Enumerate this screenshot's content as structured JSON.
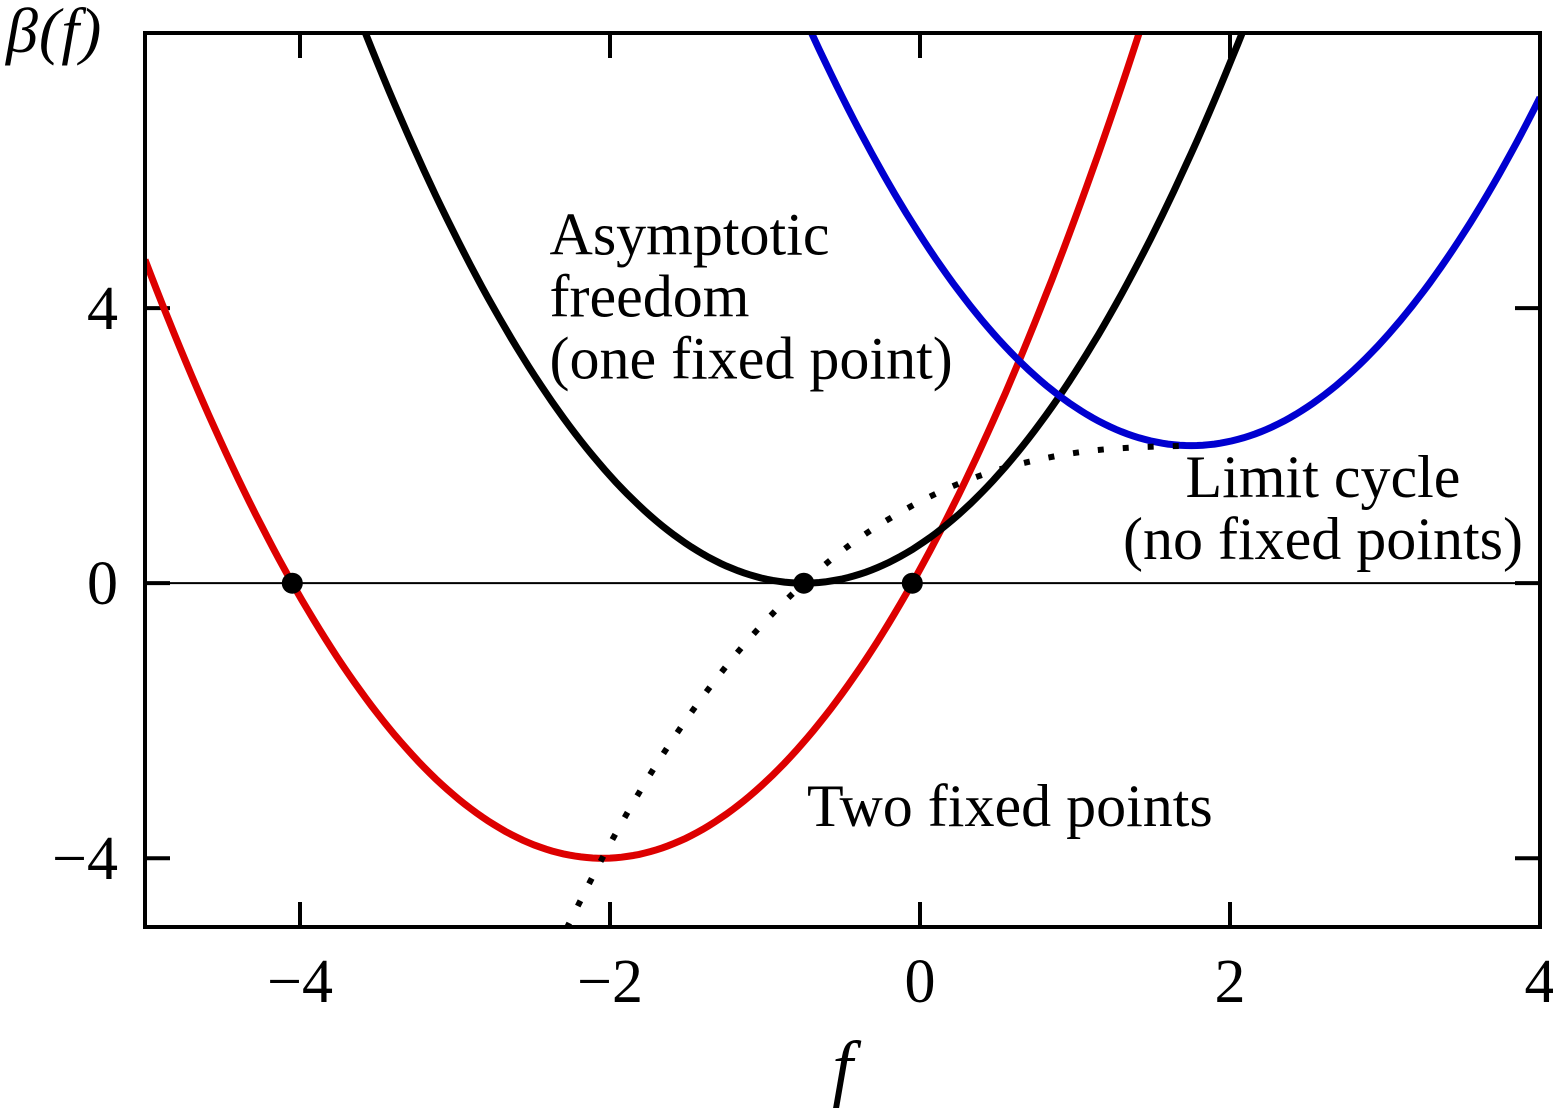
{
  "chart_data": {
    "type": "line",
    "xlabel": "f",
    "ylabel": "β(f)",
    "xlim": [
      -5,
      4
    ],
    "ylim": [
      -5,
      8
    ],
    "xticks": {
      "values": [
        -4,
        -2,
        0,
        2,
        4
      ],
      "labels": [
        "−4",
        "−2",
        "0",
        "2",
        "4"
      ]
    },
    "yticks": {
      "values": [
        -4,
        0,
        4
      ],
      "labels": [
        "−4",
        "0",
        "4"
      ]
    },
    "grid": false,
    "zero_line_y": 0,
    "axis_color": "#000000",
    "background": "#ffffff",
    "series": [
      {
        "name": "two-fixed-points-parabola",
        "label": "Two fixed points",
        "type": "parabola",
        "params": {
          "a": 1,
          "h": -2.05,
          "k": -4
        },
        "color": "#dd0000",
        "dash": "solid",
        "stroke_width": 7,
        "description": "beta(f) = (f + 2.05)^2 - 4; crosses zero at f = -4.05 and f = -0.05; minimum at (-2.05, -4)"
      },
      {
        "name": "asymptotic-freedom-parabola",
        "label": "Asymptotic freedom (one fixed point)",
        "type": "parabola",
        "params": {
          "a": 1,
          "h": -0.75,
          "k": 0
        },
        "color": "#000000",
        "dash": "solid",
        "stroke_width": 7,
        "description": "beta(f) = (f + 0.75)^2; tangent to zero at f = -0.75 (one fixed point)"
      },
      {
        "name": "limit-cycle-parabola",
        "label": "Limit cycle (no fixed points)",
        "type": "parabola",
        "params": {
          "a": 1,
          "h": 1.75,
          "k": 2
        },
        "color": "#0000d0",
        "dash": "solid",
        "stroke_width": 7,
        "description": "beta(f) = (f - 1.75)^2 + 2; never crosses zero (no fixed points); minimum at (1.75, 2)"
      },
      {
        "name": "locus-of-minima",
        "label": "locus of parabola minima (dotted)",
        "type": "spline",
        "points": [
          [
            -2.28,
            -5.02
          ],
          [
            -2.05,
            -4.0
          ],
          [
            -1.8,
            -3.0
          ],
          [
            -1.55,
            -2.12
          ],
          [
            -1.3,
            -1.35
          ],
          [
            -1.05,
            -0.68
          ],
          [
            -0.75,
            0.0
          ],
          [
            -0.45,
            0.56
          ],
          [
            -0.15,
            1.0
          ],
          [
            0.15,
            1.35
          ],
          [
            0.45,
            1.61
          ],
          [
            0.75,
            1.79
          ],
          [
            1.05,
            1.91
          ],
          [
            1.35,
            1.97
          ],
          [
            1.75,
            2.0
          ]
        ],
        "color": "#000000",
        "dash": "dotted",
        "stroke_width": 6
      }
    ],
    "fixed_points": [
      {
        "f": -4.05,
        "beta": 0
      },
      {
        "f": -0.75,
        "beta": 0
      },
      {
        "f": -0.05,
        "beta": 0
      }
    ],
    "marker_radius": 10.5,
    "annotations": [
      {
        "name": "asymptotic-freedom-label",
        "lines": [
          "Asymptotic",
          "freedom",
          "(one fixed point)"
        ],
        "f": -2.39,
        "beta": 4.78,
        "align": "start"
      },
      {
        "name": "limit-cycle-label",
        "lines": [
          "Limit cycle",
          "(no fixed points)"
        ],
        "f": 2.6,
        "beta": 1.25,
        "align": "middle"
      },
      {
        "name": "two-fixed-points-label",
        "lines": [
          "Two fixed points"
        ],
        "f": 0.58,
        "beta": -3.53,
        "align": "middle"
      }
    ]
  }
}
